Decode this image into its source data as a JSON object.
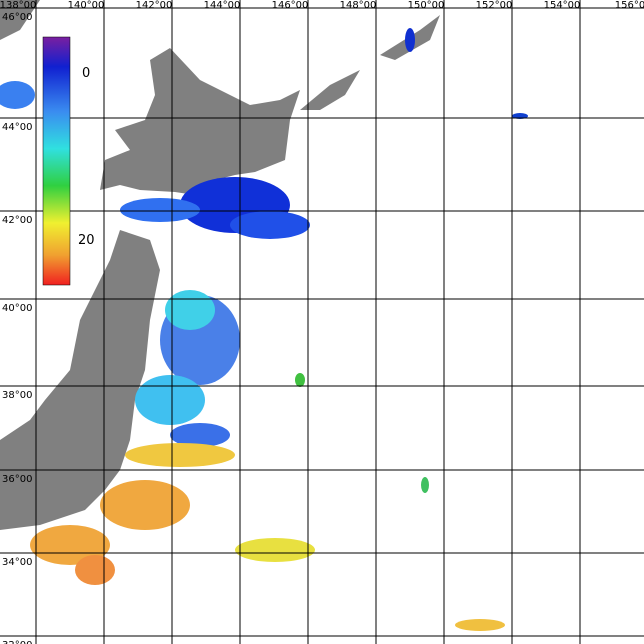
{
  "map": {
    "lon_labels": [
      "138°00",
      "140°00",
      "142°00",
      "144°00",
      "146°00",
      "148°00",
      "150°00",
      "152°00",
      "154°00",
      "156°0"
    ],
    "lat_labels": [
      "46°00",
      "44°00",
      "42°00",
      "40°00",
      "38°00",
      "36°00",
      "34°00",
      "32°00"
    ],
    "colorbar": {
      "labels": [
        "0",
        "20"
      ]
    }
  }
}
